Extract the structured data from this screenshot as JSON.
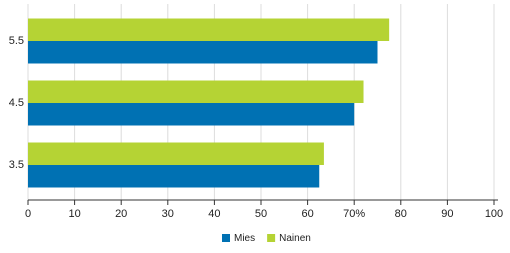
{
  "chart_data": {
    "type": "hbar",
    "categories": [
      "5.5",
      "4.5",
      "3.5"
    ],
    "series": [
      {
        "name": "Nainen",
        "color": "#b5d334",
        "values": [
          77.5,
          72,
          63.5
        ]
      },
      {
        "name": "Mies",
        "color": "#0071b3",
        "values": [
          75,
          70,
          62.5
        ]
      }
    ],
    "legend_order": [
      "Mies",
      "Nainen"
    ],
    "xlim": [
      0,
      100
    ],
    "xticks": [
      0,
      10,
      20,
      30,
      40,
      50,
      60,
      {
        "value": 70,
        "label": "70%"
      },
      80,
      90,
      100
    ],
    "grid": true,
    "legend": "bottom"
  }
}
